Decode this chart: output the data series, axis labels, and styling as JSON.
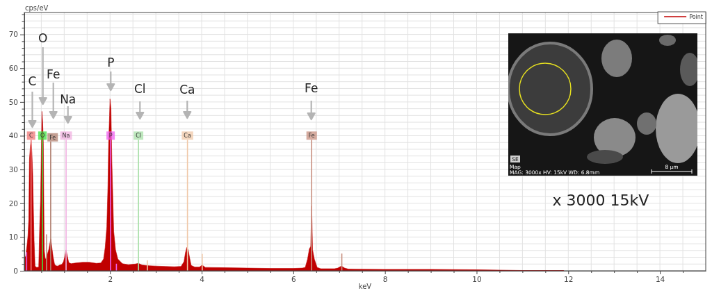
{
  "chart_data": {
    "type": "area",
    "xlabel": "keV",
    "ylabel": "cps/eV",
    "xlim": [
      0.13,
      15
    ],
    "ylim": [
      0,
      76.5
    ],
    "xticks": [
      {
        "value": 0.5,
        "label": null
      },
      {
        "value": 1,
        "label": null
      },
      {
        "value": 1.5,
        "label": null
      },
      2,
      {
        "value": 2.5,
        "label": null
      },
      {
        "value": 3,
        "label": null
      },
      {
        "value": 3.5,
        "label": null
      },
      4,
      {
        "value": 4.5,
        "label": null
      },
      {
        "value": 5,
        "label": null
      },
      {
        "value": 5.5,
        "label": null
      },
      6,
      {
        "value": 6.5,
        "label": null
      },
      {
        "value": 7,
        "label": null
      },
      {
        "value": 7.5,
        "label": null
      },
      8,
      {
        "value": 8.5,
        "label": null
      },
      {
        "value": 9,
        "label": null
      },
      {
        "value": 9.5,
        "label": null
      },
      10,
      {
        "value": 10.5,
        "label": null
      },
      {
        "value": 11,
        "label": null
      },
      {
        "value": 11.5,
        "label": null
      },
      12,
      {
        "value": 12.5,
        "label": null
      },
      {
        "value": 13,
        "label": null
      },
      {
        "value": 13.5,
        "label": null
      },
      14,
      {
        "value": 14.5,
        "label": null
      }
    ],
    "yticks": [
      0,
      {
        "value": 2,
        "label": null
      },
      {
        "value": 4,
        "label": null
      },
      {
        "value": 6,
        "label": null
      },
      {
        "value": 8,
        "label": null
      },
      10,
      {
        "value": 12,
        "label": null
      },
      {
        "value": 14,
        "label": null
      },
      {
        "value": 16,
        "label": null
      },
      {
        "value": 18,
        "label": null
      },
      20,
      {
        "value": 22,
        "label": null
      },
      {
        "value": 24,
        "label": null
      },
      {
        "value": 26,
        "label": null
      },
      {
        "value": 28,
        "label": null
      },
      30,
      {
        "value": 32,
        "label": null
      },
      {
        "value": 34,
        "label": null
      },
      {
        "value": 36,
        "label": null
      },
      {
        "value": 38,
        "label": null
      },
      40,
      {
        "value": 42,
        "label": null
      },
      {
        "value": 44,
        "label": null
      },
      {
        "value": 46,
        "label": null
      },
      {
        "value": 48,
        "label": null
      },
      50,
      {
        "value": 52,
        "label": null
      },
      {
        "value": 54,
        "label": null
      },
      {
        "value": 56,
        "label": null
      },
      {
        "value": 58,
        "label": null
      },
      60,
      {
        "value": 62,
        "label": null
      },
      {
        "value": 64,
        "label": null
      },
      {
        "value": 66,
        "label": null
      },
      {
        "value": 68,
        "label": null
      },
      70,
      {
        "value": 72,
        "label": null
      },
      {
        "value": 74,
        "label": null
      },
      {
        "value": 76,
        "label": null
      }
    ],
    "grid": true,
    "legend": "top right",
    "series": [
      {
        "name": "Point",
        "color": "#c00000",
        "x": [
          0.13,
          0.16,
          0.19,
          0.21,
          0.227,
          0.242,
          0.262,
          0.277,
          0.295,
          0.312,
          0.328,
          0.343,
          0.363,
          0.4,
          0.444,
          0.464,
          0.484,
          0.5,
          0.515,
          0.53,
          0.545,
          0.555,
          0.565,
          0.585,
          0.61,
          0.63,
          0.667,
          0.706,
          0.73,
          0.758,
          0.79,
          0.82,
          0.86,
          0.9,
          0.95,
          0.985,
          1.01,
          1.04,
          1.07,
          1.1,
          1.15,
          1.25,
          1.4,
          1.55,
          1.7,
          1.8,
          1.86,
          1.894,
          1.93,
          1.955,
          1.97,
          1.99,
          2.0,
          2.02,
          2.04,
          2.06,
          2.08,
          2.12,
          2.17,
          2.27,
          2.4,
          2.55,
          2.62,
          2.7,
          2.85,
          3.0,
          3.2,
          3.4,
          3.55,
          3.615,
          3.645,
          3.675,
          3.705,
          3.74,
          3.77,
          3.85,
          3.95,
          4.01,
          4.08,
          4.5,
          5.0,
          5.5,
          6.0,
          6.2,
          6.26,
          6.31,
          6.35,
          6.38,
          6.4,
          6.42,
          6.46,
          6.52,
          6.6,
          6.9,
          6.97,
          7.05,
          7.12,
          7.2,
          8.0,
          9.0,
          10.0,
          11.0,
          11.9
        ],
        "values": [
          4.0,
          4.2,
          7.6,
          10.5,
          15.1,
          33,
          37,
          38.6,
          35,
          28.8,
          18,
          8.9,
          1.4,
          1.0,
          1.1,
          12.3,
          20.6,
          34.3,
          47.2,
          44,
          37.7,
          20,
          6,
          3.6,
          3.5,
          4.8,
          6.5,
          9.5,
          7,
          4.1,
          1.9,
          1.5,
          1.4,
          1.7,
          1.9,
          2.7,
          4.0,
          6.2,
          4.2,
          2.4,
          2.1,
          2.3,
          2.5,
          2.5,
          2.2,
          2.3,
          3.5,
          6.9,
          13,
          25.4,
          37.7,
          46,
          50.9,
          48,
          32.3,
          22,
          11.7,
          6.2,
          3.5,
          2.1,
          1.8,
          2.0,
          2.2,
          1.7,
          1.5,
          1.4,
          1.3,
          1.2,
          1.3,
          2.7,
          5.3,
          6.9,
          6.2,
          3.6,
          1.6,
          1.1,
          1.1,
          1.7,
          1.0,
          0.9,
          0.8,
          0.7,
          0.7,
          0.8,
          1.0,
          3.4,
          6.5,
          7.2,
          19.2,
          6.2,
          3.4,
          1.0,
          0.6,
          0.6,
          0.8,
          1.4,
          0.8,
          0.5,
          0.4,
          0.4,
          0.3,
          0.1,
          0.1
        ]
      },
      {
        "type": "bar",
        "x": [
          0.18,
          0.277,
          0.525,
          0.615,
          0.705,
          1.041,
          2.013,
          2.139,
          2.621,
          2.815,
          3.69,
          4.012,
          6.4,
          7.058
        ],
        "values": [
          5.5,
          38.8,
          38.8,
          10.8,
          38.3,
          38.8,
          38.8,
          2.1,
          38.8,
          3.1,
          38.8,
          5.0,
          38.8,
          5.1
        ],
        "colors": [
          "#e060e0",
          "#f07878",
          "#40e040",
          "#c09080",
          "#b08070",
          "#f0b0e0",
          "#f060f0",
          "#f060f0",
          "#a8e0a8",
          "#f0c8a8",
          "#f0c8a8",
          "#f0c8a8",
          "#c89080",
          "#c89080"
        ],
        "value_labels": [
          null,
          "C",
          "O",
          null,
          "Fe",
          "Na",
          "P",
          null,
          "Cl",
          null,
          "Ca",
          null,
          "Fe",
          null
        ]
      }
    ],
    "annotations": [
      "C",
      "O",
      "Fe",
      "Na",
      "P",
      "Cl",
      "Ca",
      "Fe",
      "SE",
      "Map",
      "MAG: 3000x HV: 15kV WD: 6.8mm",
      "8 µm",
      "x 3000 15kV"
    ]
  }
}
